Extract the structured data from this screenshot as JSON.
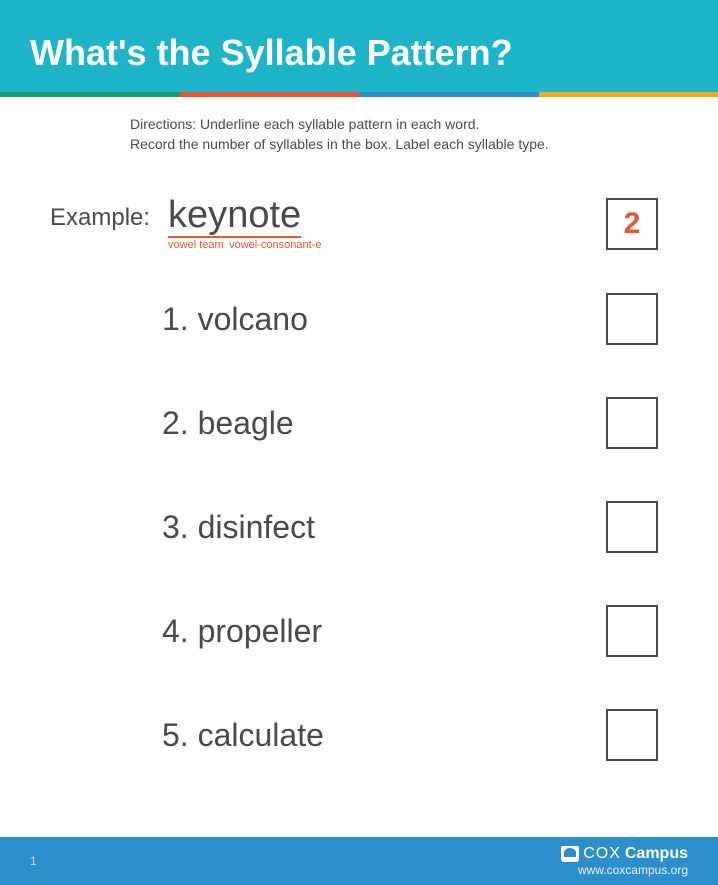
{
  "header": {
    "title": "What's the Syllable Pattern?"
  },
  "color_strip": {
    "colors": [
      "#1a9c6b",
      "#e8542e",
      "#2c8fcc",
      "#f5a623"
    ]
  },
  "directions": {
    "line1": "Directions: Underline each syllable pattern in each word.",
    "line2": "Record the number of syllables in the box. Label each syllable type."
  },
  "example": {
    "label": "Example:",
    "syllable1": "key",
    "syllable2": "note",
    "syllable1_type": "vowel team",
    "syllable2_type": "vowel-consonant-e",
    "count": "2"
  },
  "items": [
    {
      "num": "1.",
      "word": "volcano"
    },
    {
      "num": "2.",
      "word": "beagle"
    },
    {
      "num": "3.",
      "word": "disinfect"
    },
    {
      "num": "4.",
      "word": "propeller"
    },
    {
      "num": "5.",
      "word": "calculate"
    }
  ],
  "footer": {
    "page": "1",
    "brand_cox": "COX",
    "brand_campus": "Campus",
    "url": "www.coxcampus.org"
  }
}
